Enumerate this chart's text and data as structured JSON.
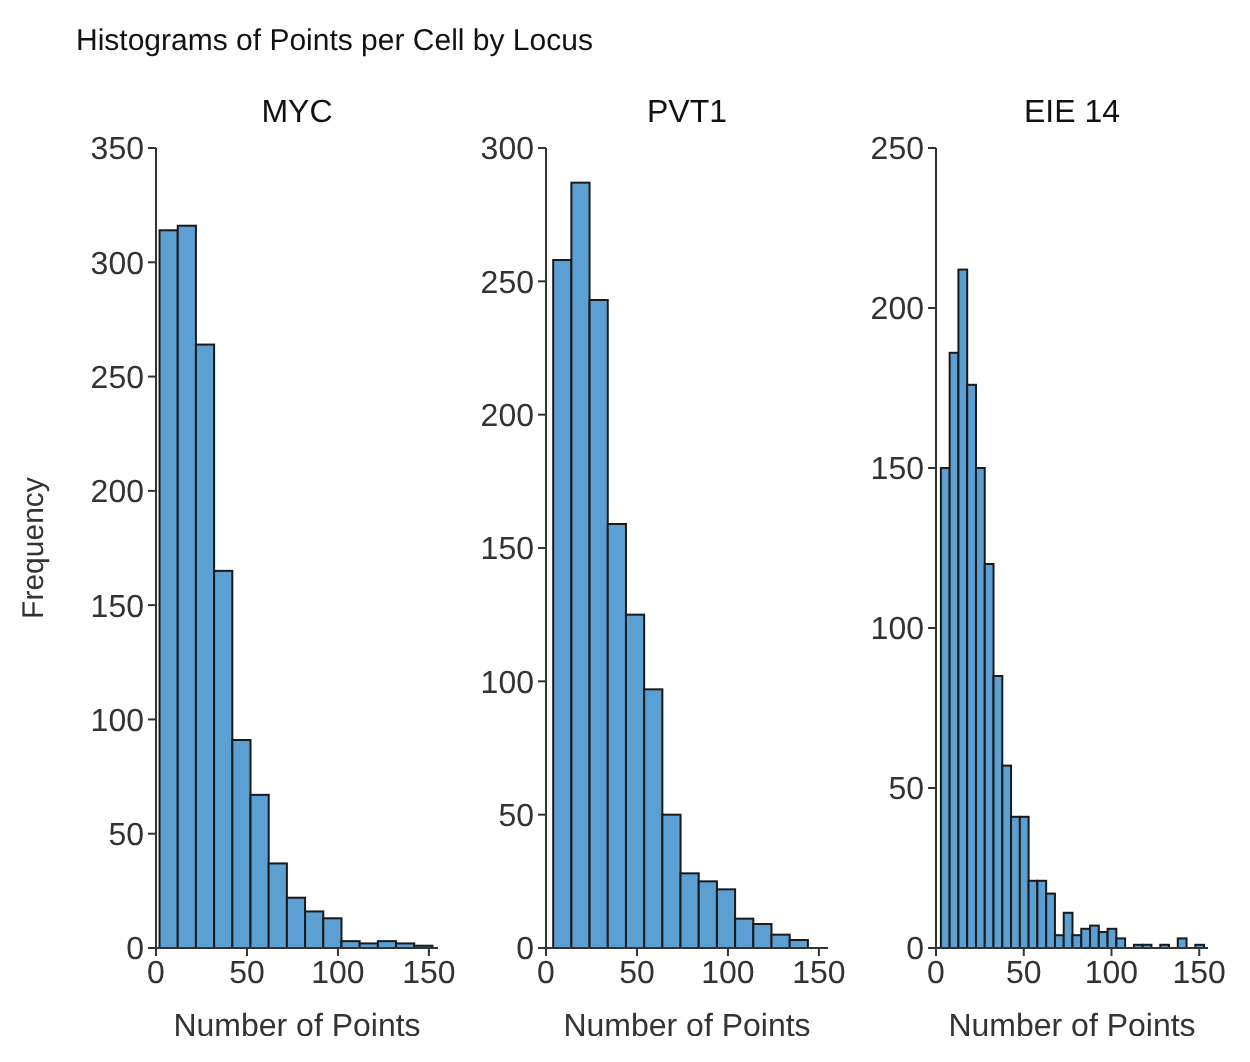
{
  "chart_data": [
    {
      "type": "histogram",
      "title": "MYC",
      "annotations": [
        "Histograms of Points per Cell by Locus"
      ],
      "xlabel": "Number of Points",
      "ylabel": "Frequency",
      "color": "#5b9fd3",
      "bins": [
        2,
        12,
        22,
        32,
        42,
        52,
        62,
        72,
        82,
        92,
        102,
        112,
        122,
        132,
        142,
        152
      ],
      "values": [
        314,
        316,
        264,
        165,
        91,
        67,
        37,
        22,
        16,
        13,
        3,
        2,
        3,
        2,
        1
      ],
      "xlim": [
        0,
        155
      ],
      "xticks": [
        0,
        50,
        100,
        150
      ],
      "ylim": [
        0,
        350
      ],
      "yticks": [
        0,
        50,
        100,
        150,
        200,
        250,
        300,
        350
      ],
      "grid": false
    },
    {
      "type": "histogram",
      "title": "PVT1",
      "xlabel": "Number of Points",
      "color": "#5b9fd3",
      "bins": [
        4,
        14,
        24,
        34,
        44,
        54,
        64,
        74,
        84,
        94,
        104,
        114,
        124,
        134,
        144,
        154
      ],
      "values": [
        258,
        287,
        243,
        159,
        125,
        97,
        50,
        28,
        25,
        22,
        11,
        9,
        5,
        3,
        0
      ],
      "xlim": [
        0,
        155
      ],
      "xticks": [
        0,
        50,
        100,
        150
      ],
      "ylim": [
        0,
        300
      ],
      "yticks": [
        0,
        50,
        100,
        150,
        200,
        250,
        300
      ],
      "grid": false
    },
    {
      "type": "histogram",
      "title": "EIE 14",
      "xlabel": "Number of Points",
      "color": "#5b9fd3",
      "bins": [
        3,
        8,
        13,
        18,
        23,
        28,
        33,
        38,
        43,
        48,
        53,
        58,
        63,
        68,
        73,
        78,
        83,
        88,
        93,
        98,
        103,
        108,
        113,
        118,
        123,
        128,
        133,
        138,
        143,
        148,
        153
      ],
      "values": [
        150,
        186,
        212,
        176,
        150,
        120,
        85,
        57,
        41,
        41,
        21,
        21,
        17,
        4,
        11,
        4,
        6,
        7,
        5,
        6,
        3,
        0,
        1,
        1,
        0,
        1,
        0,
        3,
        0,
        1
      ],
      "xlim": [
        0,
        155
      ],
      "xticks": [
        0,
        50,
        100,
        150
      ],
      "ylim": [
        0,
        250
      ],
      "yticks": [
        0,
        50,
        100,
        150,
        200,
        250
      ],
      "grid": false
    }
  ]
}
